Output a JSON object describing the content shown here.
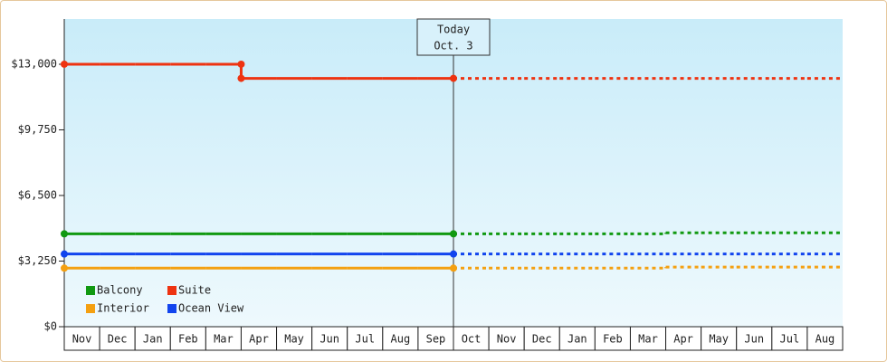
{
  "chart_data": {
    "type": "step",
    "categories": [
      "Nov",
      "Dec",
      "Jan",
      "Feb",
      "Mar",
      "Apr",
      "May",
      "Jun",
      "Jul",
      "Aug",
      "Sep",
      "Oct",
      "Nov",
      "Dec",
      "Jan",
      "Feb",
      "Mar",
      "Apr",
      "May",
      "Jun",
      "Jul",
      "Aug"
    ],
    "series": [
      {
        "name": "Balcony",
        "color": "#119911",
        "values": [
          4600,
          4600,
          4600,
          4600,
          4600,
          4600,
          4600,
          4600,
          4600,
          4600,
          4600,
          4600,
          4600,
          4600,
          4600,
          4600,
          4600,
          4650,
          4650,
          4650,
          4650,
          4650
        ]
      },
      {
        "name": "Suite",
        "color": "#ee3311",
        "values": [
          13000,
          13000,
          13000,
          13000,
          13000,
          12300,
          12300,
          12300,
          12300,
          12300,
          12300,
          12300,
          12300,
          12300,
          12300,
          12300,
          12300,
          12300,
          12300,
          12300,
          12300,
          12300
        ]
      },
      {
        "name": "Interior",
        "color": "#f4a011",
        "values": [
          2900,
          2900,
          2900,
          2900,
          2900,
          2900,
          2900,
          2900,
          2900,
          2900,
          2900,
          2900,
          2900,
          2900,
          2900,
          2900,
          2900,
          2950,
          2950,
          2950,
          2950,
          2950
        ]
      },
      {
        "name": "Ocean View",
        "color": "#1144ee",
        "values": [
          3600,
          3600,
          3600,
          3600,
          3600,
          3600,
          3600,
          3600,
          3600,
          3600,
          3600,
          3600,
          3600,
          3600,
          3600,
          3600,
          3600,
          3600,
          3600,
          3600,
          3600,
          3600
        ]
      }
    ],
    "ylim": [
      0,
      15240
    ],
    "yticks": [
      {
        "value": 0,
        "label": "$0"
      },
      {
        "value": 3250,
        "label": "$3,250"
      },
      {
        "value": 6500,
        "label": "$6,500"
      },
      {
        "value": 9750,
        "label": "$9,750"
      },
      {
        "value": 13000,
        "label": "$13,000"
      }
    ],
    "annotation": {
      "lines": [
        "Today",
        "Oct. 3"
      ],
      "category": "Oct"
    }
  }
}
